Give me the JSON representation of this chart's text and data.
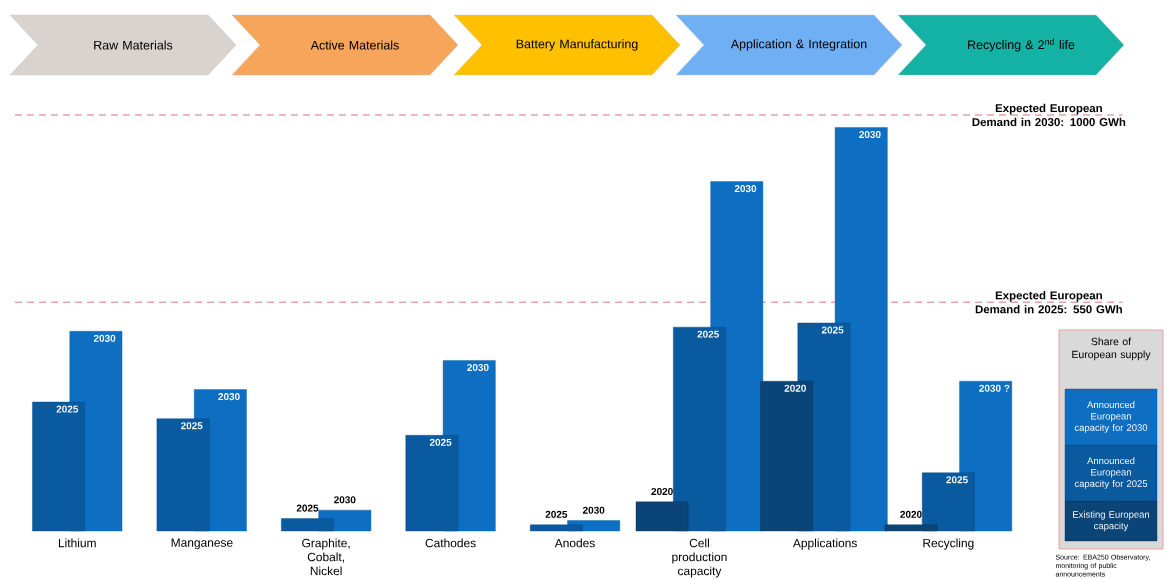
{
  "chart_data": {
    "type": "bar",
    "categories": [
      "Lithium",
      "Manganese",
      "Graphite, Cobalt, Nickel",
      "Cathodes",
      "Anodes",
      "Cell production capacity",
      "Applications",
      "Recycling"
    ],
    "series": [
      {
        "name": "Existing European capacity",
        "color": "#0b4477",
        "values": [
          null,
          null,
          null,
          null,
          null,
          70,
          360,
          15
        ]
      },
      {
        "name": "Announced European capacity for 2025",
        "color": "#0a5aa0",
        "values": [
          310,
          270,
          30,
          230,
          15,
          490,
          500,
          140
        ]
      },
      {
        "name": "Announced European capacity for 2030",
        "color": "#0e6fc2",
        "values": [
          480,
          340,
          50,
          410,
          25,
          840,
          970,
          360
        ]
      }
    ],
    "ylim": [
      0,
      1000
    ],
    "ref_lines": [
      {
        "axis": "y",
        "value": 1000,
        "label": "Expected European Demand in 2030: 1000 GWh",
        "color": "#e8a3a3",
        "line_style": "dashed"
      },
      {
        "axis": "y",
        "value": 550,
        "label": "Expected European Demand in 2025: 550 GWh",
        "color": "#e8a3a3",
        "line_style": "dashed"
      }
    ],
    "legend": "right",
    "legend_title": "Share of European supply",
    "annotations": [
      "Raw Materials",
      "Active Materials",
      "Battery Manufacturing",
      "Application & Integration",
      "Recycling & 2$^{nd}$ life",
      "Source: EBA250 Observatory, monitoring of public announcements",
      "2025",
      "2030",
      "2025",
      "2030",
      "2025",
      "2030",
      "2025",
      "2030",
      "2025",
      "2030",
      "2020",
      "2025",
      "2030",
      "2020",
      "2025",
      "2030",
      "2020",
      "2025",
      "2030 ?"
    ]
  }
}
